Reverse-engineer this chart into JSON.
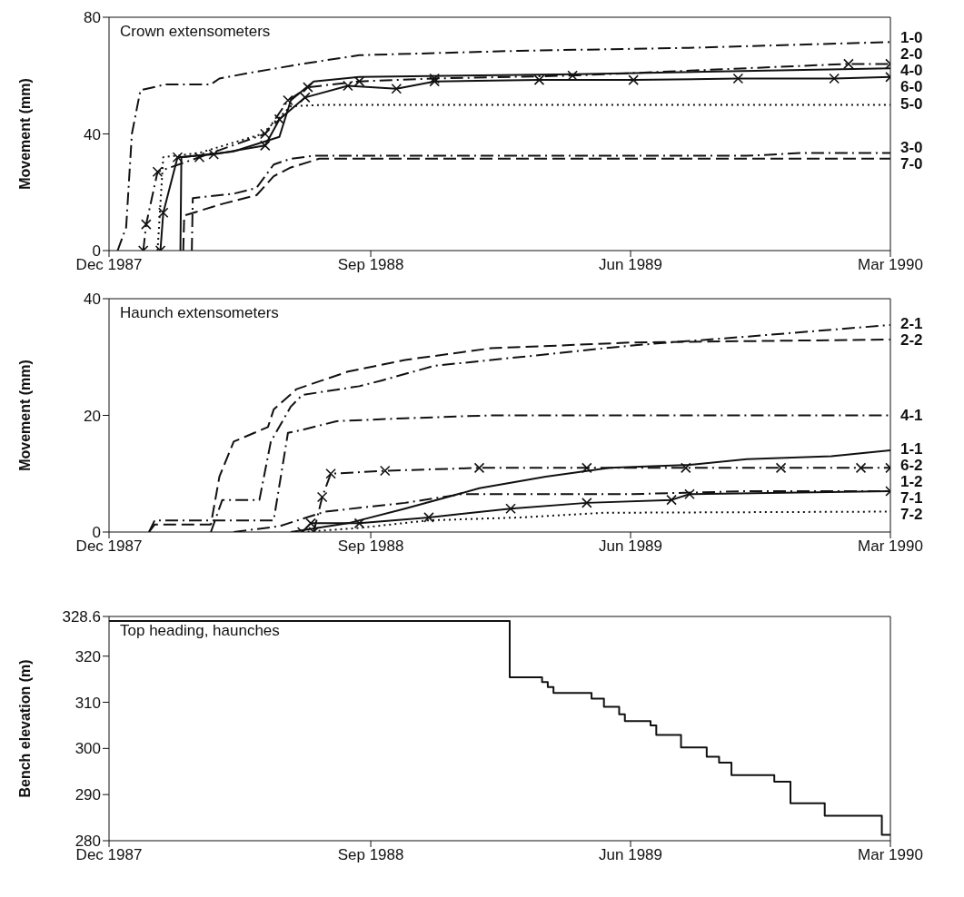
{
  "chart_data": [
    {
      "type": "line",
      "title": "Crown extensometers",
      "ylabel": "Movement (mm)",
      "xlim": [
        "1987-12",
        "1990-03"
      ],
      "xticks": [
        {
          "value": "1987-12",
          "label": "Dec 1987"
        },
        {
          "value": "1988-09",
          "label": "Sep 1988"
        },
        {
          "value": "1989-06",
          "label": "Jun 1989"
        },
        {
          "value": "1990-03",
          "label": "Mar 1990"
        }
      ],
      "ylim": [
        0,
        80
      ],
      "yticks": [
        0,
        40,
        80
      ],
      "series": [
        {
          "name": "1-0",
          "color": "#111111",
          "line_style": "dashdot",
          "marker": "none",
          "x": [
            "1987-12-10",
            "1987-12-19",
            "1987-12-25",
            "1988-01-03",
            "1988-01-30",
            "1988-03-17",
            "1988-03-26",
            "1988-04-28",
            "1988-06-21",
            "1988-08-20",
            "1989-02-04",
            "1989-08-01",
            "1990-03-01"
          ],
          "values": [
            0,
            8,
            40,
            55,
            57,
            57,
            59,
            61,
            64,
            67,
            68.5,
            69.5,
            71.5
          ]
        },
        {
          "name": "2-0",
          "color": "#111111",
          "line_style": "dashdot",
          "marker": "cross",
          "x": [
            "1988-01-06",
            "1988-01-09",
            "1988-01-21",
            "1988-03-05",
            "1988-05-13",
            "1988-06-06",
            "1988-06-27",
            "1988-08-20",
            "1988-11-07",
            "1989-04-01",
            "1990-01-16",
            "1990-03-01"
          ],
          "values": [
            0,
            9,
            27,
            32,
            40,
            51.5,
            56,
            58,
            59,
            60,
            64,
            64
          ]
        },
        {
          "name": "6-0",
          "color": "#111111",
          "line_style": "solid",
          "marker": "cross",
          "x": [
            "1988-01-24",
            "1988-01-27",
            "1988-02-11",
            "1988-03-20",
            "1988-05-13",
            "1988-05-28",
            "1988-06-24",
            "1988-08-08",
            "1988-09-28",
            "1988-11-07",
            "1989-02-25",
            "1989-06-04",
            "1989-09-22",
            "1990-01-01",
            "1990-03-01"
          ],
          "values": [
            0,
            13,
            32,
            33,
            36,
            45,
            52.5,
            56.5,
            55.5,
            58,
            58.5,
            58.5,
            59,
            59,
            59.5
          ]
        },
        {
          "name": "5-0",
          "color": "#111111",
          "line_style": "dotted",
          "marker": "none",
          "x": [
            "1988-01-21",
            "1988-01-27",
            "1988-03-05",
            "1988-05-10",
            "1988-06-09",
            "1988-07-15",
            "1990-03-01"
          ],
          "values": [
            0,
            32,
            33.5,
            40,
            49.5,
            50,
            50
          ]
        },
        {
          "name": "4-0",
          "color": "#111111",
          "line_style": "solid",
          "marker": "none",
          "x": [
            "1988-02-14",
            "1988-02-15",
            "1988-04-10",
            "1988-05-28",
            "1988-06-09",
            "1988-07-03",
            "1988-08-20",
            "1989-04-04",
            "1990-03-01"
          ],
          "values": [
            0,
            32,
            34,
            39,
            51.5,
            58,
            59.5,
            60.5,
            62.5
          ]
        },
        {
          "name": "3-0",
          "color": "#111111",
          "line_style": "dashdot",
          "marker": "none",
          "x": [
            "1988-02-26",
            "1988-02-27",
            "1988-04-10",
            "1988-05-04",
            "1988-05-22",
            "1988-06-09",
            "1988-07-03",
            "1989-10-01",
            "1989-12-01",
            "1990-03-01"
          ],
          "values": [
            0,
            18,
            19.5,
            21.5,
            29.5,
            31.5,
            32.5,
            32.5,
            33.5,
            33.5
          ]
        },
        {
          "name": "7-0",
          "color": "#111111",
          "line_style": "dashed",
          "marker": "none",
          "x": [
            "1988-02-17",
            "1988-02-18",
            "1988-03-29",
            "1988-05-04",
            "1988-05-22",
            "1988-06-09",
            "1988-07-09",
            "1990-03-01"
          ],
          "values": [
            0,
            12,
            16,
            19,
            25.5,
            28.5,
            31.5,
            31.5
          ]
        }
      ]
    },
    {
      "type": "line",
      "title": "Haunch extensometers",
      "ylabel": "Movement (mm)",
      "xlim": [
        "1987-12",
        "1990-03"
      ],
      "xticks": [
        {
          "value": "1987-12",
          "label": "Dec 1987"
        },
        {
          "value": "1988-09",
          "label": "Sep 1988"
        },
        {
          "value": "1989-06",
          "label": "Jun 1989"
        },
        {
          "value": "1990-03",
          "label": "Mar 1990"
        }
      ],
      "ylim": [
        0,
        40
      ],
      "yticks": [
        0,
        20,
        40
      ],
      "series": [
        {
          "name": "2-1",
          "color": "#111111",
          "line_style": "dashdot",
          "marker": "none",
          "x": [
            "1988-03-17",
            "1988-03-29",
            "1988-05-07",
            "1988-05-19",
            "1988-06-09",
            "1988-06-21",
            "1988-08-20",
            "1988-09-13",
            "1988-11-07",
            "1989-02-05",
            "1989-06-03",
            "1989-10-01",
            "1990-03-01"
          ],
          "values": [
            0,
            5.5,
            5.5,
            15.5,
            21.5,
            23.5,
            25,
            26,
            28.5,
            30,
            32,
            33.5,
            35.5
          ]
        },
        {
          "name": "2-2",
          "color": "#111111",
          "line_style": "dashed",
          "marker": "none",
          "x": [
            "1988-01-12",
            "1988-01-18",
            "1988-03-17",
            "1988-03-26",
            "1988-04-10",
            "1988-05-16",
            "1988-05-22",
            "1988-06-15",
            "1988-08-08",
            "1988-10-07",
            "1989-01-05",
            "1989-06-03",
            "1990-03-01"
          ],
          "values": [
            0,
            1.3,
            1.3,
            9.5,
            15.5,
            18,
            21,
            24.5,
            27.5,
            29.5,
            31.5,
            32.5,
            33
          ]
        },
        {
          "name": "4-1",
          "color": "#111111",
          "line_style": "dashdot",
          "marker": "none",
          "x": [
            "1988-01-12",
            "1988-01-18",
            "1988-05-22",
            "1988-06-06",
            "1988-06-21",
            "1988-07-27",
            "1988-10-07",
            "1989-01-05",
            "1990-03-01"
          ],
          "values": [
            0,
            2,
            2,
            17,
            17.5,
            19,
            19.5,
            20,
            20
          ]
        },
        {
          "name": "1-1",
          "color": "#111111",
          "line_style": "solid",
          "marker": "none",
          "x": [
            "1988-06-09",
            "1988-08-08",
            "1988-10-07",
            "1988-12-24",
            "1989-03-04",
            "1989-05-10",
            "1989-08-02",
            "1989-10-01",
            "1989-12-29",
            "1990-03-01"
          ],
          "values": [
            0,
            1.5,
            4,
            7.5,
            9.5,
            11,
            11.5,
            12.5,
            13,
            14
          ]
        },
        {
          "name": "6-2",
          "color": "#111111",
          "line_style": "dashdot",
          "marker": "cross",
          "x": [
            "1988-07-03",
            "1988-07-12",
            "1988-07-21",
            "1988-09-16",
            "1988-12-24",
            "1989-04-16",
            "1989-07-29",
            "1989-11-06",
            "1990-01-29",
            "1990-03-01"
          ],
          "values": [
            0,
            6,
            10,
            10.5,
            11,
            11,
            11,
            11,
            11,
            11
          ]
        },
        {
          "name": "1-2",
          "color": "#111111",
          "line_style": "dashdot",
          "marker": "none",
          "x": [
            "1988-04-10",
            "1988-05-28",
            "1988-07-15",
            "1988-10-07",
            "1988-12-06",
            "1989-06-03",
            "1989-10-01",
            "1990-01-05",
            "1990-03-01"
          ],
          "values": [
            0,
            1,
            3.5,
            5,
            6.5,
            6.5,
            7,
            7,
            7
          ]
        },
        {
          "name": "7-1",
          "color": "#111111",
          "line_style": "solid",
          "marker": "cross",
          "x": [
            "1988-06-21",
            "1988-06-30",
            "1988-08-20",
            "1988-11-01",
            "1989-01-26",
            "1989-04-16",
            "1989-07-14",
            "1989-08-02",
            "1990-03-01"
          ],
          "values": [
            0,
            1.5,
            1.5,
            2.5,
            4,
            5,
            5.5,
            6.5,
            7
          ]
        },
        {
          "name": "7-2",
          "color": "#111111",
          "line_style": "dotted",
          "marker": "none",
          "x": [
            "1988-06-21",
            "1988-08-20",
            "1988-11-01",
            "1989-02-05",
            "1989-05-04",
            "1990-03-01"
          ],
          "values": [
            0,
            0.7,
            2,
            2.5,
            3.3,
            3.5
          ]
        }
      ]
    },
    {
      "type": "step",
      "title": "Top heading, haunches",
      "ylabel": "Bench elevation (m)",
      "xlim": [
        "1987-12",
        "1990-03"
      ],
      "xticks": [
        {
          "value": "1987-12",
          "label": "Dec 1987"
        },
        {
          "value": "1988-09",
          "label": "Sep 1988"
        },
        {
          "value": "1989-06",
          "label": "Jun 1989"
        },
        {
          "value": "1990-03",
          "label": "Mar 1990"
        }
      ],
      "ylim": [
        280,
        328.6
      ],
      "yticks": [
        280,
        290,
        300,
        310,
        320,
        328.6
      ],
      "series": [
        {
          "color": "#111111",
          "line_style": "solid",
          "marker": "none",
          "x": [
            "1987-12-01",
            "1989-01-25",
            "1989-02-28",
            "1989-03-06",
            "1989-03-12",
            "1989-04-21",
            "1989-05-04",
            "1989-05-20",
            "1989-05-26",
            "1989-06-22",
            "1989-06-28",
            "1989-07-24",
            "1989-08-20",
            "1989-09-02",
            "1989-09-15",
            "1989-10-30",
            "1989-11-16",
            "1989-12-22",
            "1990-02-20",
            "1990-03-01"
          ],
          "values": [
            327.6,
            315.4,
            314.4,
            313.3,
            312,
            310.8,
            309,
            307.4,
            305.9,
            305,
            302.9,
            300.2,
            298.2,
            296.9,
            294.2,
            292.8,
            288.1,
            285.4,
            281.3,
            281.3
          ]
        }
      ]
    }
  ]
}
